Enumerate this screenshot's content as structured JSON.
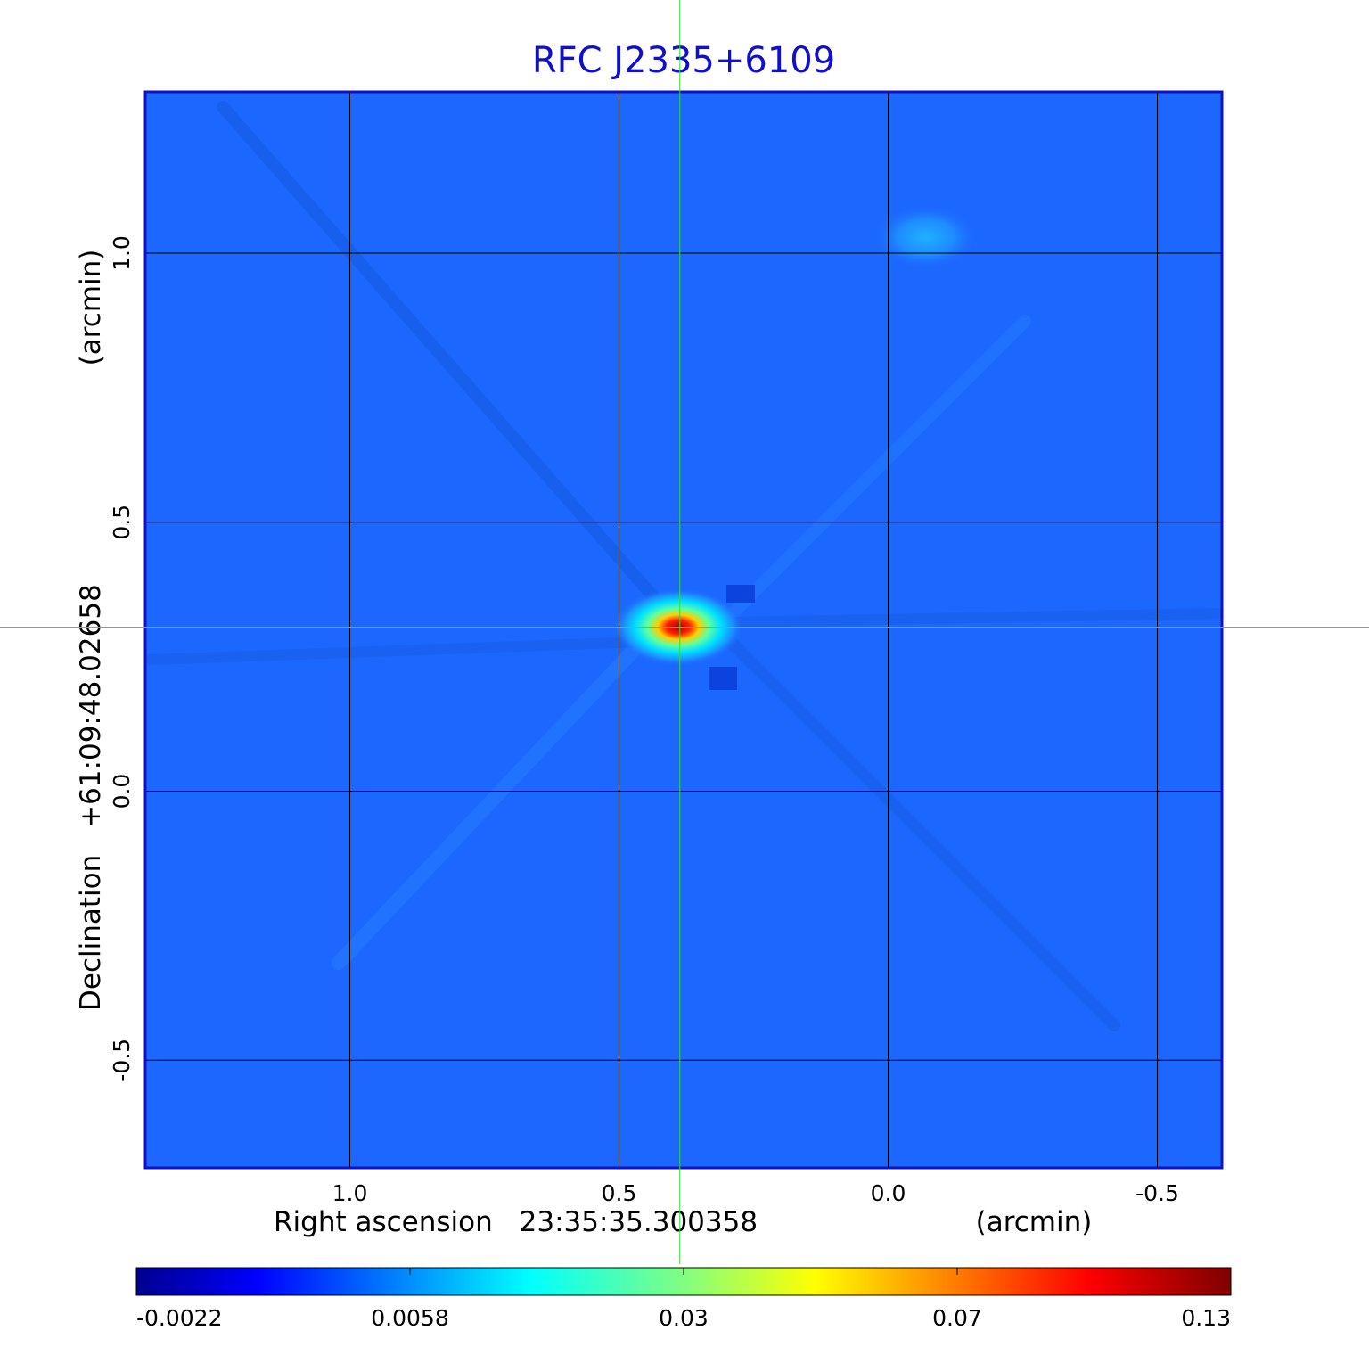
{
  "chart_data": {
    "type": "heatmap",
    "title": "RFC J2335+6109",
    "xlabel": {
      "prefix": "Right ascension",
      "value": "23:35:35.300358",
      "unit": "(arcmin)"
    },
    "ylabel": {
      "prefix": "Declination",
      "value": "+61:09:48.02658",
      "unit": "(arcmin)"
    },
    "x_axis": {
      "reversed": true,
      "range": [
        1.38,
        -0.62
      ],
      "ticks": [
        1.0,
        0.5,
        0.0,
        -0.5
      ],
      "tick_labels": [
        "1.0",
        "0.5",
        "0.0",
        "-0.5"
      ]
    },
    "y_axis": {
      "range": [
        -0.7,
        1.3
      ],
      "ticks": [
        -0.5,
        0.0,
        0.5,
        1.0
      ],
      "tick_labels": [
        "-0.5",
        "0.0",
        "0.5",
        "1.0"
      ]
    },
    "grid": true,
    "crosshair": {
      "x": 0.387,
      "y": 0.305,
      "color": "#33dd33"
    },
    "colorbar": {
      "position": "bottom",
      "colormap": "jet",
      "ticks": [
        "-0.0022",
        "0.0058",
        "0.03",
        "0.07",
        "0.13"
      ]
    },
    "background_level": 0.0,
    "sources": [
      {
        "x": 0.39,
        "y": 0.305,
        "peak": 0.13,
        "sigma_x": 0.05,
        "sigma_y": 0.03
      },
      {
        "x": -0.07,
        "y": 1.03,
        "peak": 0.0075,
        "sigma_x": 0.04,
        "sigma_y": 0.025
      }
    ]
  }
}
